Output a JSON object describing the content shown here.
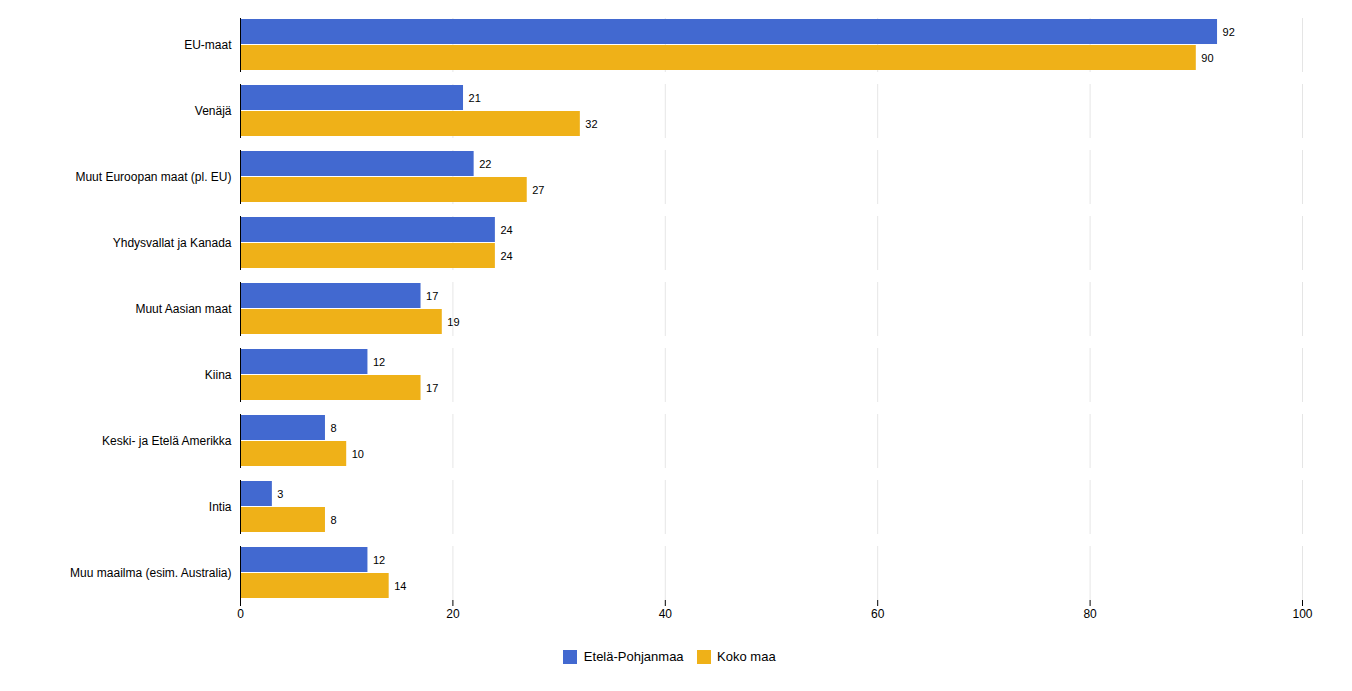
{
  "chart_data": {
    "type": "bar",
    "orientation": "horizontal",
    "categories": [
      "EU-maat",
      "Venäjä",
      "Muut Euroopan maat (pl. EU)",
      "Yhdysvallat ja Kanada",
      "Muut Aasian maat",
      "Kiina",
      "Keski- ja Etelä Amerikka",
      "Intia",
      "Muu maailma (esim. Australia)"
    ],
    "series": [
      {
        "name": "Etelä-Pohjanmaa",
        "values": [
          92,
          21,
          22,
          24,
          17,
          12,
          8,
          3,
          12
        ]
      },
      {
        "name": "Koko maa",
        "values": [
          90,
          32,
          27,
          24,
          19,
          17,
          10,
          8,
          14
        ]
      }
    ],
    "xlim": [
      0,
      100
    ],
    "xticks": [
      0,
      20,
      40,
      60,
      80,
      100
    ],
    "grid": true,
    "legend": "bottom",
    "data_labels": true
  }
}
